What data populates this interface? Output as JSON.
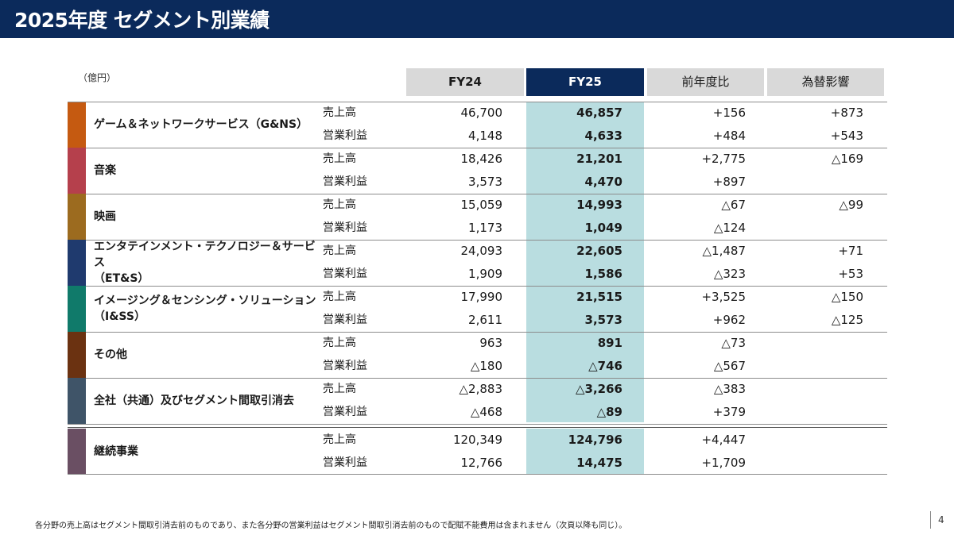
{
  "title": "2025年度 セグメント別業績",
  "unit": "（億円）",
  "columns": {
    "fy24": "FY24",
    "fy25": "FY25",
    "yoy": "前年度比",
    "fx": "為替影響"
  },
  "segments": [
    {
      "name": "ゲーム＆ネットワークサービス（G&NS）",
      "color": "#c55a11",
      "rows": [
        {
          "metric": "売上高",
          "fy24": "46,700",
          "fy25": "46,857",
          "yoy": "+156",
          "fx": "+873"
        },
        {
          "metric": "営業利益",
          "fy24": "4,148",
          "fy25": "4,633",
          "yoy": "+484",
          "fx": "+543"
        }
      ]
    },
    {
      "name": "音楽",
      "color": "#b5404c",
      "rows": [
        {
          "metric": "売上高",
          "fy24": "18,426",
          "fy25": "21,201",
          "yoy": "+2,775",
          "fx": "△169"
        },
        {
          "metric": "営業利益",
          "fy24": "3,573",
          "fy25": "4,470",
          "yoy": "+897",
          "fx": ""
        }
      ]
    },
    {
      "name": "映画",
      "color": "#9c6b1f",
      "rows": [
        {
          "metric": "売上高",
          "fy24": "15,059",
          "fy25": "14,993",
          "yoy": "△67",
          "fx": "△99"
        },
        {
          "metric": "営業利益",
          "fy24": "1,173",
          "fy25": "1,049",
          "yoy": "△124",
          "fx": ""
        }
      ]
    },
    {
      "name": "エンタテインメント・テクノロジー＆サービス\n（ET&S）",
      "color": "#1f3a6e",
      "rows": [
        {
          "metric": "売上高",
          "fy24": "24,093",
          "fy25": "22,605",
          "yoy": "△1,487",
          "fx": "+71"
        },
        {
          "metric": "営業利益",
          "fy24": "1,909",
          "fy25": "1,586",
          "yoy": "△323",
          "fx": "+53"
        }
      ]
    },
    {
      "name": "イメージング＆センシング・ソリューション\n（I&SS）",
      "color": "#107a6a",
      "rows": [
        {
          "metric": "売上高",
          "fy24": "17,990",
          "fy25": "21,515",
          "yoy": "+3,525",
          "fx": "△150"
        },
        {
          "metric": "営業利益",
          "fy24": "2,611",
          "fy25": "3,573",
          "yoy": "+962",
          "fx": "△125"
        }
      ]
    },
    {
      "name": "その他",
      "color": "#6b3211",
      "rows": [
        {
          "metric": "売上高",
          "fy24": "963",
          "fy25": "891",
          "yoy": "△73",
          "fx": ""
        },
        {
          "metric": "営業利益",
          "fy24": "△180",
          "fy25": "△746",
          "yoy": "△567",
          "fx": ""
        }
      ]
    },
    {
      "name": "全社（共通）及びセグメント間取引消去",
      "color": "#3f5468",
      "rows": [
        {
          "metric": "売上高",
          "fy24": "△2,883",
          "fy25": "△3,266",
          "yoy": "△383",
          "fx": ""
        },
        {
          "metric": "営業利益",
          "fy24": "△468",
          "fy25": "△89",
          "yoy": "+379",
          "fx": ""
        }
      ]
    },
    {
      "name": "継続事業",
      "color": "#6a4f63",
      "rows": [
        {
          "metric": "売上高",
          "fy24": "120,349",
          "fy25": "124,796",
          "yoy": "+4,447",
          "fx": ""
        },
        {
          "metric": "営業利益",
          "fy24": "12,766",
          "fy25": "14,475",
          "yoy": "+1,709",
          "fx": ""
        }
      ]
    }
  ],
  "footnote": "各分野の売上高はセグメント間取引消去前のものであり、また各分野の営業利益はセグメント間取引消去前のもので配賦不能費用は含まれません（次頁以降も同じ）。",
  "page_number": "4"
}
